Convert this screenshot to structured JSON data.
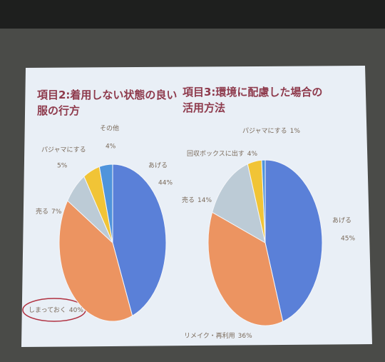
{
  "chart_data": [
    {
      "type": "pie",
      "title": "項目2:着用しない状態の良い服の行方",
      "categories": [
        "あげる",
        "しまっておく",
        "売る",
        "パジャマにする",
        "その他"
      ],
      "values": [
        44,
        40,
        7,
        5,
        4
      ],
      "value_labels": [
        "44%",
        "40%",
        "7%",
        "5%",
        "4%"
      ],
      "colors": [
        "#5a80d8",
        "#ec9461",
        "#bccbd6",
        "#f1c436",
        "#4f94dc"
      ]
    },
    {
      "type": "pie",
      "title": "項目3:環境に配慮した場合の活用方法",
      "categories": [
        "あげる",
        "リメイク・再利用",
        "売る",
        "回収ボックスに出す",
        "パジャマにする"
      ],
      "values": [
        45,
        36,
        14,
        4,
        1
      ],
      "value_labels": [
        "45%",
        "36%",
        "14%",
        "4%",
        "1%"
      ],
      "colors": [
        "#5a80d8",
        "#ec9461",
        "#bccbd6",
        "#f1c436",
        "#4f94dc"
      ]
    }
  ]
}
